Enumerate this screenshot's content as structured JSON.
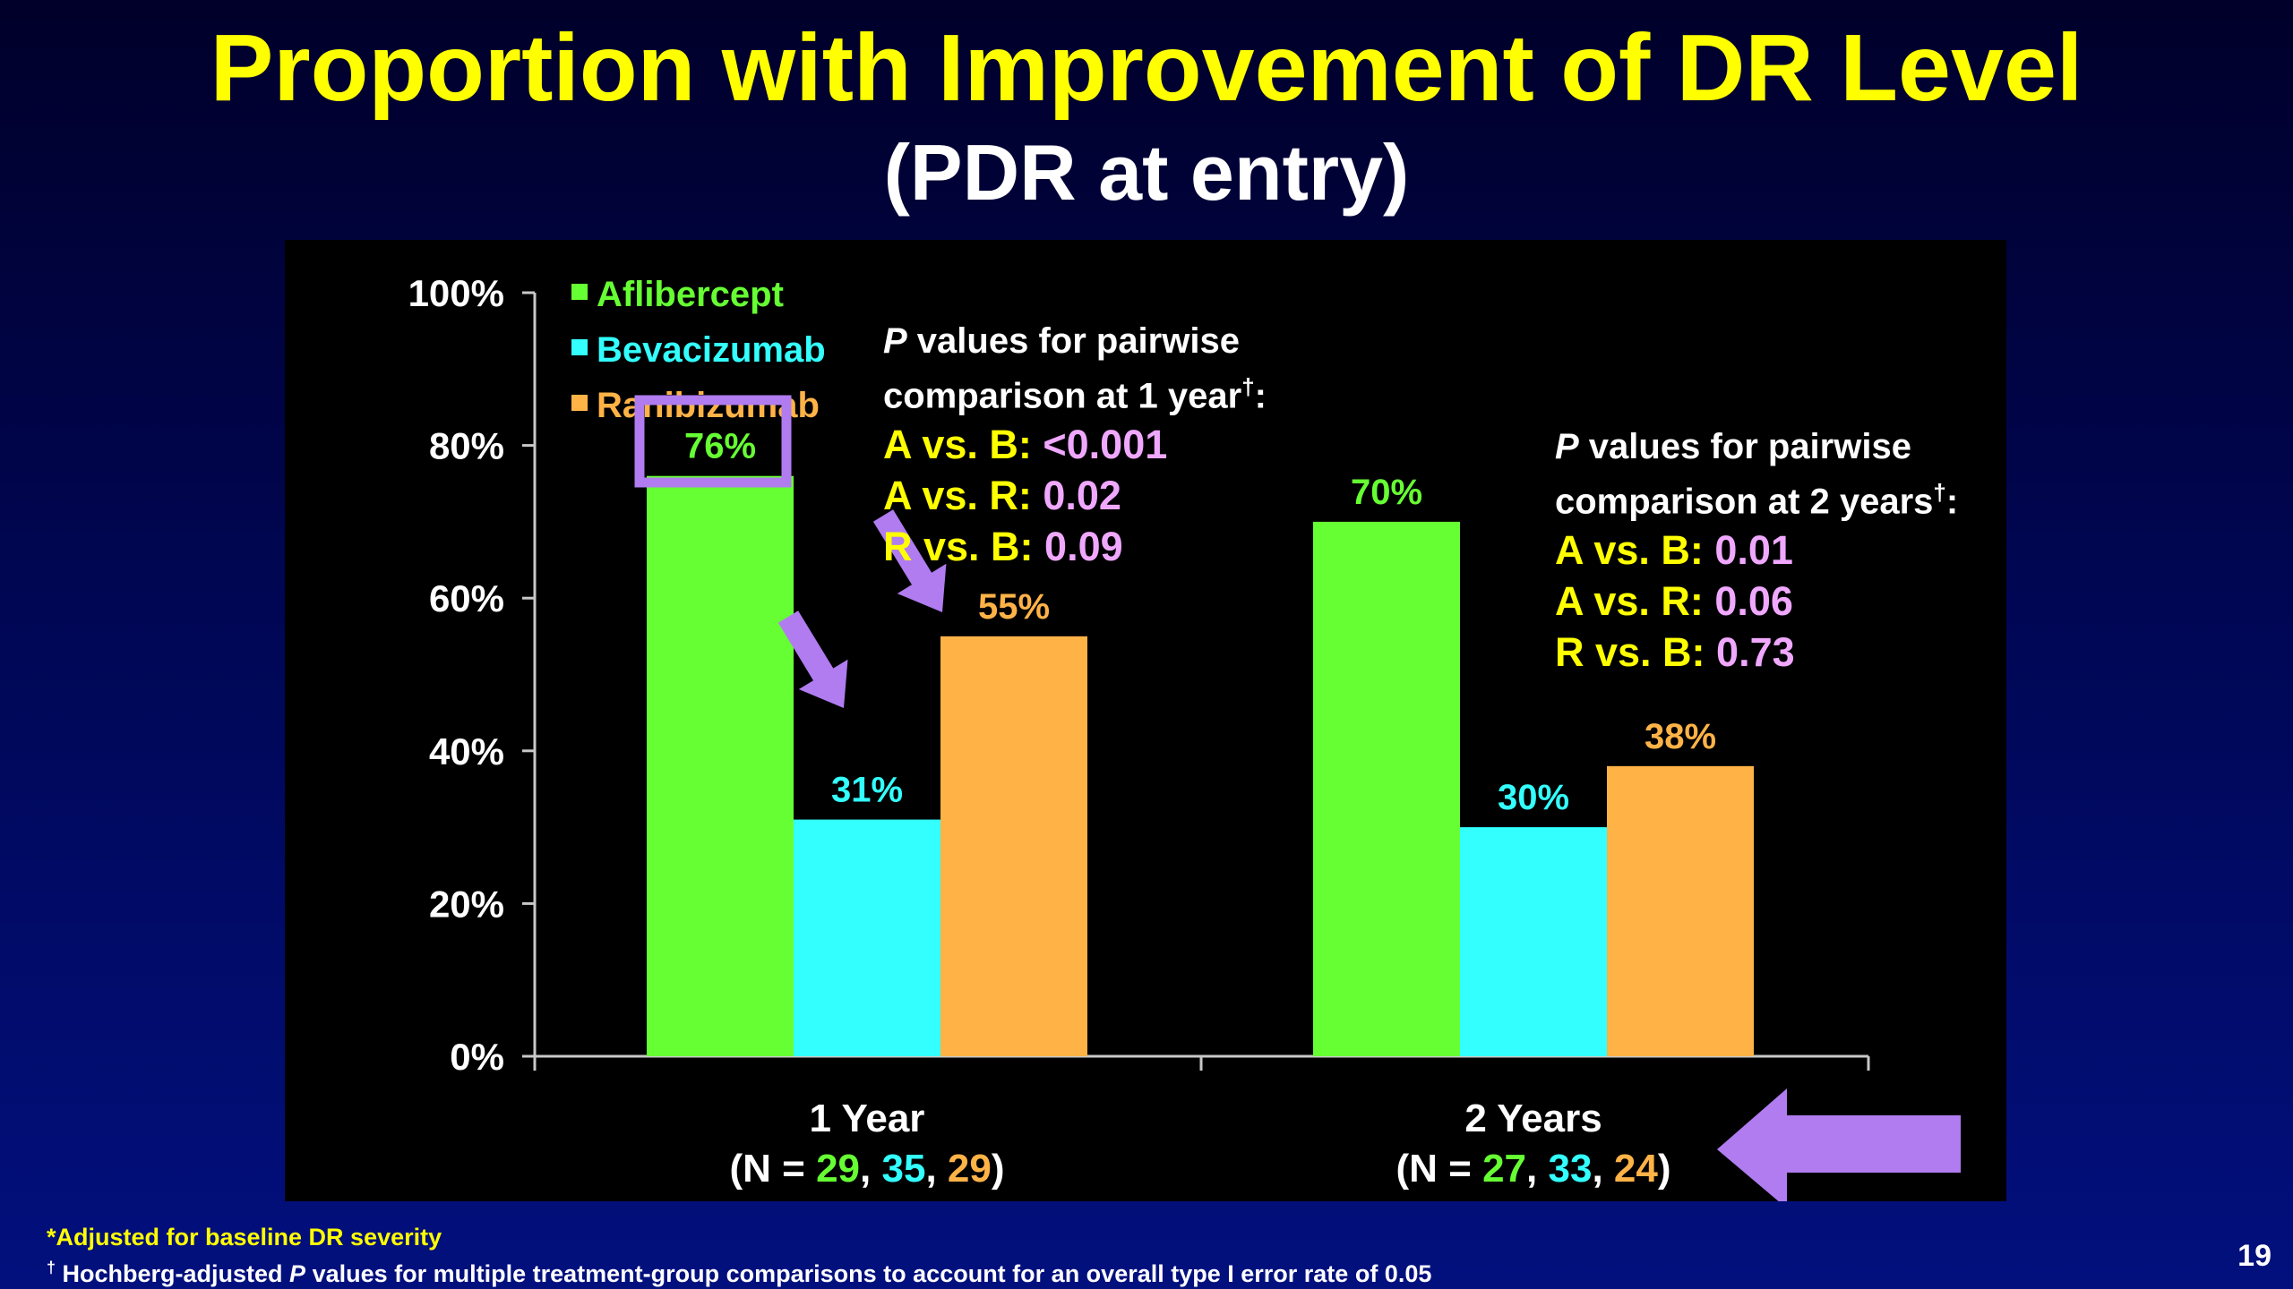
{
  "title": "Proportion with Improvement of DR Level",
  "subtitle": "(PDR at entry)",
  "chart_data": {
    "type": "bar",
    "categories": [
      "1 Year",
      "2 Years"
    ],
    "category_n": [
      {
        "prefix": "(N = ",
        "values": [
          "29",
          "35",
          "29"
        ],
        "separator": ", ",
        "suffix": ")"
      },
      {
        "prefix": "(N = ",
        "values": [
          "27",
          "33",
          "24"
        ],
        "separator": ", ",
        "suffix": ")"
      }
    ],
    "series": [
      {
        "name": "Aflibercept",
        "values": [
          76,
          70
        ],
        "labels": [
          "76%",
          "70%"
        ],
        "color": "#66ff33"
      },
      {
        "name": "Bevacizumab",
        "values": [
          31,
          30
        ],
        "labels": [
          "31%",
          "30%"
        ],
        "color": "#33ffff"
      },
      {
        "name": "Ranibizumab",
        "values": [
          55,
          38
        ],
        "labels": [
          "55%",
          "38%"
        ],
        "color": "#ffb347"
      }
    ],
    "ylim": [
      0,
      100
    ],
    "yticks": [
      "0%",
      "20%",
      "40%",
      "60%",
      "80%",
      "100%"
    ],
    "legend": "top-left",
    "grid": false
  },
  "annotations": {
    "highlight_color": "#b07cf0",
    "p_values_year1": {
      "header_italic": "P",
      "header_line1": " values for pairwise",
      "header_line2": "comparison at 1 year",
      "dagger": "†",
      "colon": ":",
      "rows": [
        {
          "name": "A vs. B: ",
          "value": "<0.001"
        },
        {
          "name": "A vs. R: ",
          "value": "0.02"
        },
        {
          "name": "R vs. B: ",
          "value": "0.09"
        }
      ]
    },
    "p_values_year2": {
      "header_italic": "P",
      "header_line1": " values for pairwise",
      "header_line2": "comparison at 2 years",
      "dagger": "†",
      "colon": ":",
      "rows": [
        {
          "name": "A vs. B: ",
          "value": "0.01"
        },
        {
          "name": "A vs. R: ",
          "value": "0.06"
        },
        {
          "name": "R vs. B: ",
          "value": "0.73"
        }
      ]
    }
  },
  "footnotes": {
    "line1": "*Adjusted for baseline DR severity",
    "line2_dagger": "†",
    "line2_pre": " Hochberg-adjusted ",
    "line2_italic": "P",
    "line2_post": " values for multiple treatment-group comparisons to account for an overall type I error rate of 0.05"
  },
  "slide_number": "19"
}
